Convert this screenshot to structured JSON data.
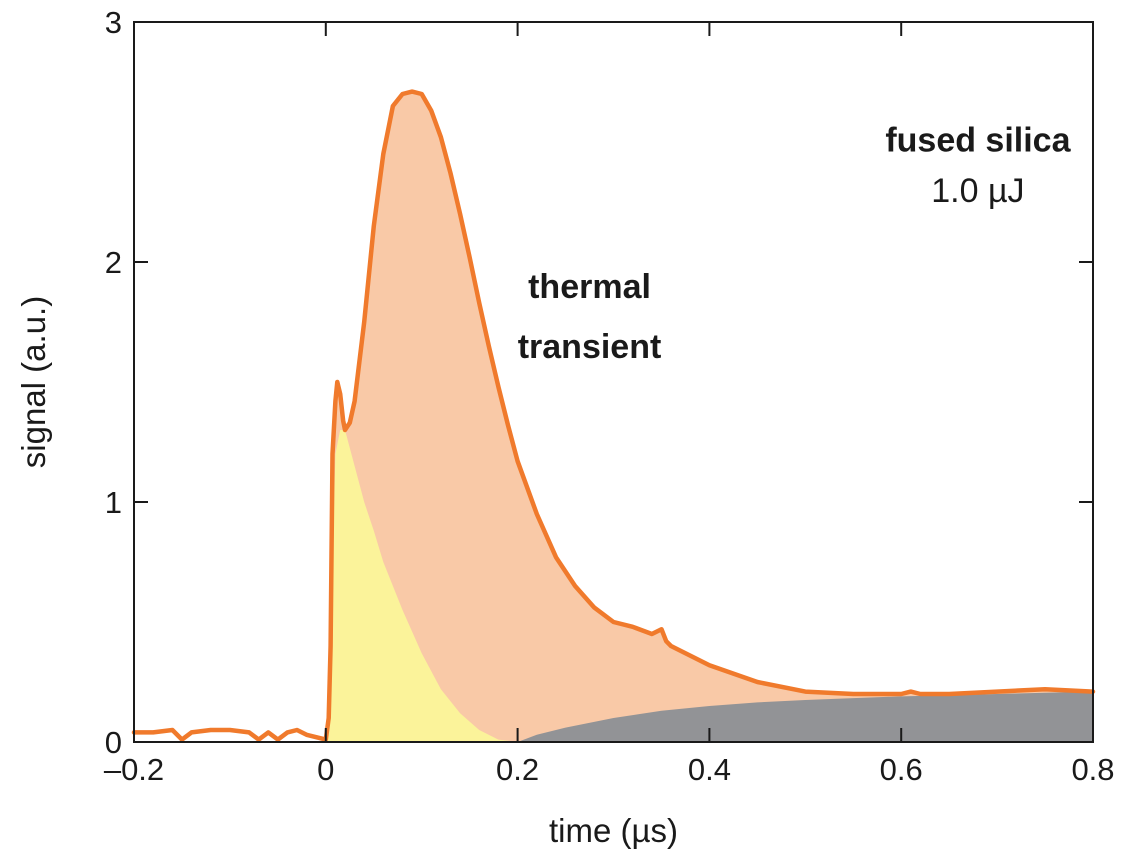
{
  "chart_data": {
    "type": "area",
    "xlabel": "time (µs)",
    "ylabel": "signal (a.u.)",
    "xlim": [
      -0.2,
      0.8
    ],
    "ylim": [
      0,
      3
    ],
    "xticks": [
      -0.2,
      0,
      0.2,
      0.4,
      0.6,
      0.8
    ],
    "xtick_labels": [
      "–0.2",
      "0",
      "0.2",
      "0.4",
      "0.6",
      "0.8"
    ],
    "yticks": [
      0,
      1,
      2,
      3
    ],
    "ytick_labels": [
      "0",
      "1",
      "2",
      "3"
    ],
    "grid": false,
    "annotations": [
      {
        "text": "fused silica",
        "x": 0.68,
        "y": 2.46,
        "bold": true
      },
      {
        "text": "1.0 µJ",
        "x": 0.68,
        "y": 2.25,
        "bold": false
      },
      {
        "text": "thermal",
        "x": 0.275,
        "y": 1.85,
        "bold": true
      },
      {
        "text": "transient",
        "x": 0.275,
        "y": 1.6,
        "bold": true
      }
    ],
    "series": [
      {
        "role": "line",
        "color": "#f07a2c",
        "x": [
          -0.2,
          -0.18,
          -0.16,
          -0.15,
          -0.14,
          -0.12,
          -0.1,
          -0.08,
          -0.07,
          -0.06,
          -0.05,
          -0.04,
          -0.03,
          -0.02,
          -0.01,
          0.0,
          0.003,
          0.005,
          0.007,
          0.01,
          0.012,
          0.015,
          0.018,
          0.02,
          0.025,
          0.03,
          0.04,
          0.05,
          0.06,
          0.07,
          0.08,
          0.09,
          0.1,
          0.11,
          0.12,
          0.13,
          0.14,
          0.15,
          0.16,
          0.17,
          0.18,
          0.19,
          0.2,
          0.22,
          0.24,
          0.26,
          0.28,
          0.3,
          0.32,
          0.34,
          0.35,
          0.355,
          0.36,
          0.38,
          0.4,
          0.45,
          0.5,
          0.55,
          0.6,
          0.61,
          0.62,
          0.65,
          0.7,
          0.75,
          0.8
        ],
        "y": [
          0.04,
          0.04,
          0.05,
          0.01,
          0.04,
          0.05,
          0.05,
          0.04,
          0.01,
          0.04,
          0.01,
          0.04,
          0.05,
          0.03,
          0.02,
          0.01,
          0.1,
          0.4,
          1.2,
          1.42,
          1.5,
          1.45,
          1.34,
          1.3,
          1.33,
          1.42,
          1.75,
          2.15,
          2.45,
          2.65,
          2.7,
          2.71,
          2.7,
          2.63,
          2.52,
          2.37,
          2.2,
          2.02,
          1.83,
          1.65,
          1.48,
          1.32,
          1.17,
          0.95,
          0.77,
          0.65,
          0.56,
          0.5,
          0.48,
          0.45,
          0.47,
          0.42,
          0.4,
          0.36,
          0.32,
          0.25,
          0.21,
          0.2,
          0.2,
          0.21,
          0.2,
          0.2,
          0.21,
          0.22,
          0.21
        ]
      },
      {
        "role": "fill",
        "color": "#f9c9a7",
        "note": "area under the line"
      },
      {
        "role": "fill",
        "color": "#fbf39a",
        "x": [
          0.0,
          0.005,
          0.01,
          0.015,
          0.02,
          0.03,
          0.04,
          0.05,
          0.06,
          0.08,
          0.1,
          0.12,
          0.14,
          0.16,
          0.18,
          0.2
        ],
        "y": [
          0.01,
          0.4,
          1.2,
          1.3,
          1.3,
          1.15,
          1.0,
          0.88,
          0.75,
          0.55,
          0.37,
          0.22,
          0.12,
          0.05,
          0.01,
          0.0
        ]
      },
      {
        "role": "fill",
        "color": "#929396",
        "x": [
          0.2,
          0.22,
          0.25,
          0.3,
          0.35,
          0.4,
          0.45,
          0.5,
          0.55,
          0.6,
          0.65,
          0.7,
          0.75,
          0.8
        ],
        "y": [
          0.0,
          0.03,
          0.06,
          0.1,
          0.13,
          0.15,
          0.165,
          0.175,
          0.183,
          0.19,
          0.195,
          0.2,
          0.205,
          0.21
        ]
      }
    ]
  }
}
